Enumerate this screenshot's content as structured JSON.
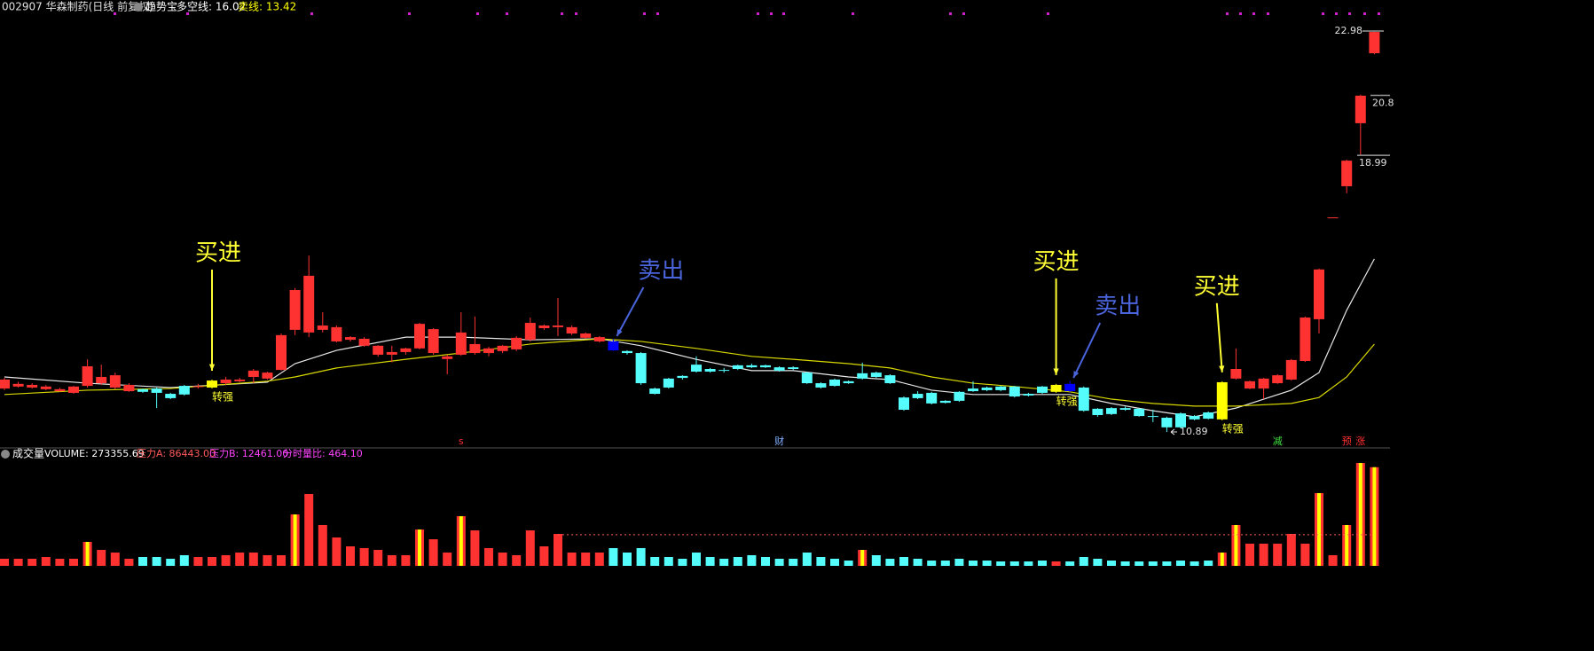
{
  "header": {
    "title": "002907 华森制药(日线 前复权)",
    "indicator": "趋势宝",
    "items": [
      {
        "text": "多空线: 16.02",
        "color": "#ffffff"
      },
      {
        "text": "卖线: 13.42",
        "color": "#ffff00"
      }
    ]
  },
  "chart_data": [
    {
      "type": "candlestick",
      "ylim": [
        10.41,
        23.5
      ],
      "up_color": "#ff3232",
      "down_color": "#54fcfc",
      "ohlc": [
        [
          12.2,
          12.52,
          12.15,
          12.47
        ],
        [
          12.26,
          12.4,
          12.23,
          12.34
        ],
        [
          12.23,
          12.36,
          12.2,
          12.31
        ],
        [
          12.18,
          12.3,
          12.15,
          12.26
        ],
        [
          12.12,
          12.22,
          12.1,
          12.18
        ],
        [
          12.07,
          12.28,
          12.04,
          12.26
        ],
        [
          12.28,
          13.08,
          12.23,
          12.87
        ],
        [
          12.36,
          12.92,
          12.31,
          12.55
        ],
        [
          12.23,
          12.68,
          12.18,
          12.6
        ],
        [
          12.12,
          12.36,
          12.1,
          12.31
        ],
        [
          12.18,
          12.2,
          12.07,
          12.1
        ],
        [
          12.2,
          12.23,
          11.61,
          12.07
        ],
        [
          12.04,
          12.07,
          11.88,
          11.91
        ],
        [
          12.28,
          12.31,
          11.99,
          12.02
        ],
        [
          12.26,
          12.34,
          12.2,
          12.27
        ],
        [
          12.23,
          12.47,
          12.2,
          12.44
        ],
        [
          12.36,
          12.55,
          12.31,
          12.47
        ],
        [
          12.42,
          12.52,
          12.39,
          12.47
        ],
        [
          12.55,
          12.79,
          12.36,
          12.74
        ],
        [
          12.5,
          12.71,
          12.47,
          12.68
        ],
        [
          12.76,
          13.86,
          12.74,
          13.81
        ],
        [
          13.97,
          15.23,
          13.81,
          15.17
        ],
        [
          13.89,
          16.21,
          13.75,
          15.6
        ],
        [
          13.97,
          14.5,
          13.89,
          14.1
        ],
        [
          13.62,
          14.1,
          13.59,
          14.05
        ],
        [
          13.67,
          13.78,
          13.62,
          13.75
        ],
        [
          13.49,
          13.75,
          13.46,
          13.7
        ],
        [
          13.22,
          13.51,
          13.16,
          13.49
        ],
        [
          13.22,
          13.49,
          12.99,
          13.3
        ],
        [
          13.3,
          13.43,
          13.22,
          13.41
        ],
        [
          13.41,
          14.18,
          13.38,
          14.15
        ],
        [
          13.27,
          14.02,
          13.22,
          13.99
        ],
        [
          13.09,
          13.22,
          12.63,
          13.17
        ],
        [
          13.22,
          14.5,
          13.19,
          13.89
        ],
        [
          13.27,
          14.37,
          13.22,
          13.54
        ],
        [
          13.27,
          13.46,
          13.17,
          13.41
        ],
        [
          13.33,
          13.51,
          13.27,
          13.49
        ],
        [
          13.38,
          13.78,
          13.33,
          13.73
        ],
        [
          13.67,
          14.34,
          13.62,
          14.18
        ],
        [
          14.02,
          14.13,
          13.97,
          14.1
        ],
        [
          14.05,
          14.93,
          13.78,
          14.1
        ],
        [
          13.86,
          14.1,
          13.81,
          14.05
        ],
        [
          13.73,
          13.89,
          13.7,
          13.86
        ],
        [
          13.62,
          13.78,
          13.59,
          13.75
        ],
        [
          13.62,
          13.7,
          13.33,
          13.35
        ],
        [
          13.33,
          13.35,
          13.22,
          13.27
        ],
        [
          13.27,
          13.3,
          12.31,
          12.36
        ],
        [
          12.2,
          12.23,
          12.02,
          12.04
        ],
        [
          12.5,
          12.52,
          12.2,
          12.23
        ],
        [
          12.58,
          12.6,
          12.47,
          12.52
        ],
        [
          12.92,
          13.17,
          12.68,
          12.71
        ],
        [
          12.79,
          12.82,
          12.68,
          12.71
        ],
        [
          12.76,
          12.82,
          12.68,
          12.74
        ],
        [
          12.9,
          12.92,
          12.76,
          12.79
        ],
        [
          12.9,
          12.95,
          12.82,
          12.84
        ],
        [
          12.9,
          12.92,
          12.82,
          12.84
        ],
        [
          12.84,
          12.87,
          12.71,
          12.74
        ],
        [
          12.84,
          12.87,
          12.76,
          12.79
        ],
        [
          12.68,
          12.71,
          12.34,
          12.36
        ],
        [
          12.36,
          12.39,
          12.2,
          12.23
        ],
        [
          12.47,
          12.5,
          12.26,
          12.28
        ],
        [
          12.42,
          12.44,
          12.34,
          12.36
        ],
        [
          12.66,
          12.98,
          12.47,
          12.5
        ],
        [
          12.68,
          12.71,
          12.52,
          12.55
        ],
        [
          12.6,
          12.63,
          12.34,
          12.36
        ],
        [
          11.93,
          11.96,
          11.53,
          11.56
        ],
        [
          12.04,
          12.12,
          11.88,
          11.91
        ],
        [
          12.07,
          12.1,
          11.72,
          11.75
        ],
        [
          11.83,
          11.85,
          11.75,
          11.77
        ],
        [
          12.1,
          12.12,
          11.8,
          11.83
        ],
        [
          12.2,
          12.42,
          12.1,
          12.12
        ],
        [
          12.23,
          12.26,
          12.12,
          12.15
        ],
        [
          12.26,
          12.28,
          12.12,
          12.15
        ],
        [
          12.26,
          12.28,
          11.93,
          11.96
        ],
        [
          12.04,
          12.07,
          11.96,
          11.99
        ],
        [
          12.26,
          12.28,
          12.04,
          12.07
        ],
        [
          12.1,
          12.34,
          12.07,
          12.31
        ],
        [
          12.34,
          12.44,
          12.1,
          12.12
        ],
        [
          12.23,
          12.26,
          11.5,
          11.53
        ],
        [
          11.59,
          11.61,
          11.35,
          11.4
        ],
        [
          11.61,
          11.64,
          11.4,
          11.43
        ],
        [
          11.61,
          11.66,
          11.53,
          11.56
        ],
        [
          11.59,
          11.61,
          11.35,
          11.37
        ],
        [
          11.37,
          11.56,
          11.19,
          11.35
        ],
        [
          11.32,
          11.35,
          10.89,
          11.03
        ],
        [
          11.45,
          11.48,
          11.0,
          11.03
        ],
        [
          11.37,
          11.4,
          11.24,
          11.27
        ],
        [
          11.48,
          11.51,
          11.27,
          11.29
        ],
        [
          11.27,
          12.42,
          11.24,
          12.39
        ],
        [
          12.5,
          13.41,
          12.47,
          12.79
        ],
        [
          12.2,
          12.44,
          12.18,
          12.42
        ],
        [
          12.2,
          12.52,
          11.88,
          12.5
        ],
        [
          12.36,
          12.63,
          12.34,
          12.6
        ],
        [
          12.47,
          13.09,
          12.44,
          13.06
        ],
        [
          13.03,
          14.37,
          13.0,
          14.34
        ],
        [
          14.29,
          15.82,
          13.86,
          15.79
        ],
        [
          17.36,
          17.36,
          17.36,
          17.36
        ],
        [
          18.3,
          19.1,
          18.09,
          19.07
        ],
        [
          20.2,
          21.06,
          19.24,
          21.03
        ],
        [
          22.31,
          22.98,
          22.28,
          22.95
        ]
      ],
      "highlights": [
        {
          "index": 15,
          "color": "#ffff00"
        },
        {
          "index": 44,
          "color": "#0000ff"
        },
        {
          "index": 76,
          "color": "#ffff00"
        },
        {
          "index": 77,
          "color": "#0000ff"
        },
        {
          "index": 88,
          "color": "#ffff00"
        }
      ],
      "lines": [
        {
          "color": "#e8e8e8",
          "x": [
            0,
            6,
            12,
            19,
            21,
            24,
            29,
            33,
            38,
            43,
            46,
            50,
            54,
            57,
            61,
            64,
            67,
            70,
            73,
            77,
            80,
            83,
            86,
            89,
            93,
            95,
            97,
            99
          ],
          "values": [
            12.55,
            12.36,
            12.23,
            12.39,
            12.95,
            13.35,
            13.75,
            13.75,
            13.67,
            13.7,
            13.49,
            13.08,
            12.74,
            12.74,
            12.55,
            12.47,
            12.15,
            12.02,
            12.02,
            12.02,
            11.75,
            11.53,
            11.35,
            11.61,
            12.15,
            12.68,
            14.56,
            16.11
          ]
        },
        {
          "color": "#d8d800",
          "x": [
            0,
            6,
            12,
            19,
            21,
            24,
            29,
            33,
            38,
            43,
            46,
            50,
            54,
            57,
            61,
            64,
            67,
            70,
            73,
            77,
            80,
            83,
            86,
            89,
            93,
            95,
            97,
            99
          ],
          "values": [
            12.02,
            12.15,
            12.2,
            12.42,
            12.55,
            12.82,
            13.08,
            13.27,
            13.54,
            13.7,
            13.62,
            13.41,
            13.17,
            13.08,
            12.95,
            12.82,
            12.55,
            12.36,
            12.26,
            12.1,
            11.88,
            11.75,
            11.67,
            11.67,
            11.75,
            11.93,
            12.55,
            13.54
          ]
        }
      ],
      "annotations": [
        {
          "text": "买进",
          "index": 15,
          "color": "#ffff33"
        },
        {
          "text": "卖出",
          "index": 44,
          "color": "#4a64dc"
        },
        {
          "text": "买进",
          "index": 76,
          "color": "#ffff33"
        },
        {
          "text": "卖出",
          "index": 77,
          "color": "#4a64dc"
        },
        {
          "text": "买进",
          "index": 88,
          "color": "#ffff33"
        }
      ],
      "tags": [
        {
          "text": "转强",
          "index": 15
        },
        {
          "text": "转强",
          "index": 76
        },
        {
          "text": "转强",
          "index": 88
        }
      ],
      "markers": [
        {
          "text": "s",
          "index": 33,
          "color": "#ff3030"
        },
        {
          "text": "财",
          "index": 56,
          "color": "#7fb0ff"
        },
        {
          "text": "减",
          "index": 92,
          "color": "#40e040"
        },
        {
          "text": "预",
          "index": 97,
          "color": "#ff3030"
        },
        {
          "text": "涨",
          "index": 98,
          "color": "#ff3030"
        }
      ],
      "price_marks": [
        22.98,
        20.8,
        18.99,
        10.89
      ]
    },
    {
      "type": "bar",
      "title": "成交量",
      "ylim": [
        0,
        290000
      ],
      "header_items": [
        {
          "text": "VOLUME: 273355.69",
          "color": "#ffffff"
        },
        {
          "text": "压力A: 86443.00",
          "color": "#ff5a5a"
        },
        {
          "text": "压力B: 12461.00",
          "color": "#ff44ff"
        },
        {
          "text": "分时量比: 464.10",
          "color": "#ff44ff"
        }
      ],
      "ref_value": 86443,
      "values": [
        19700,
        19700,
        19700,
        24600,
        19700,
        19700,
        66400,
        44200,
        36900,
        19700,
        24600,
        24600,
        19700,
        29500,
        24600,
        24600,
        29500,
        36900,
        36900,
        29500,
        29500,
        142600,
        199100,
        113100,
        78700,
        54100,
        49200,
        44200,
        29500,
        29500,
        100800,
        73700,
        36900,
        137600,
        98300,
        49200,
        36900,
        29500,
        98300,
        54100,
        88500,
        36900,
        36900,
        36900,
        49200,
        36900,
        49200,
        24600,
        24600,
        19700,
        36900,
        24600,
        19700,
        24600,
        29500,
        24600,
        19700,
        19700,
        36900,
        24600,
        19700,
        14700,
        44200,
        29500,
        19700,
        24600,
        19700,
        14700,
        14700,
        19700,
        14700,
        14700,
        12300,
        12300,
        12300,
        14700,
        12300,
        12300,
        24600,
        19700,
        14700,
        12300,
        12300,
        12300,
        12300,
        14700,
        12300,
        14700,
        36900,
        113100,
        61500,
        61500,
        61500,
        88500,
        61500,
        201600,
        29500,
        113100,
        285100,
        273355.69
      ],
      "highlights": [
        6,
        21,
        30,
        33,
        62,
        88,
        89,
        95,
        97,
        98,
        99
      ],
      "highlight_color": "#ffff00"
    }
  ]
}
